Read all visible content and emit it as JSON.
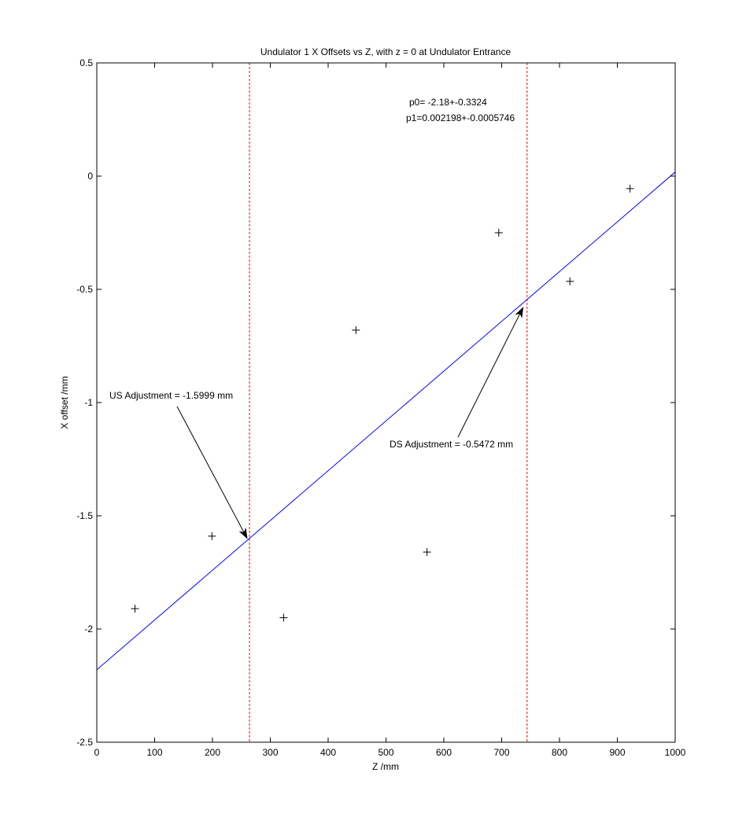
{
  "chart_data": {
    "type": "scatter",
    "title": "Undulator 1 X Offsets vs Z, with z = 0 at Undulator Entrance",
    "xlabel": "Z /mm",
    "ylabel": "X offset /mm",
    "xlim": [
      0,
      1000
    ],
    "ylim": [
      -2.5,
      0.5
    ],
    "xticks": [
      0,
      100,
      200,
      300,
      400,
      500,
      600,
      700,
      800,
      900,
      1000
    ],
    "xtick_labels": [
      "0",
      "100",
      "200",
      "300",
      "400",
      "500",
      "600",
      "700",
      "800",
      "900",
      "1000"
    ],
    "yticks": [
      0.5,
      0,
      -0.5,
      -1,
      -1.5,
      -2,
      -2.5
    ],
    "ytick_labels": [
      "0.5",
      "0",
      "-0.5",
      "-1",
      "-1.5",
      "-2",
      "-2.5"
    ],
    "grid": false,
    "points": [
      {
        "x": 66,
        "y": -1.91
      },
      {
        "x": 199,
        "y": -1.59
      },
      {
        "x": 323,
        "y": -1.95
      },
      {
        "x": 448,
        "y": -0.68
      },
      {
        "x": 571,
        "y": -1.66
      },
      {
        "x": 695,
        "y": -0.25
      },
      {
        "x": 818,
        "y": -0.465
      },
      {
        "x": 922,
        "y": -0.055
      }
    ],
    "fit_line": {
      "intercept": -2.18,
      "slope": 0.002198,
      "color": "#0000ff",
      "x_range": [
        0,
        1000
      ]
    },
    "vertical_lines": [
      {
        "x": 264,
        "color": "#ff0000"
      },
      {
        "x": 744,
        "color": "#ff0000"
      }
    ],
    "annotations": [
      {
        "text": "p0=  -2.18+-0.3324",
        "kind": "fit-param"
      },
      {
        "text": "p1=0.002198+-0.0005746",
        "kind": "fit-param"
      },
      {
        "text": "US Adjustment = -1.5999 mm",
        "kind": "arrow",
        "arrow_to": {
          "x": 260,
          "y": -1.6
        }
      },
      {
        "text": "DS Adjustment = -0.5472 mm",
        "kind": "arrow",
        "arrow_to": {
          "x": 737,
          "y": -0.58
        }
      }
    ]
  }
}
